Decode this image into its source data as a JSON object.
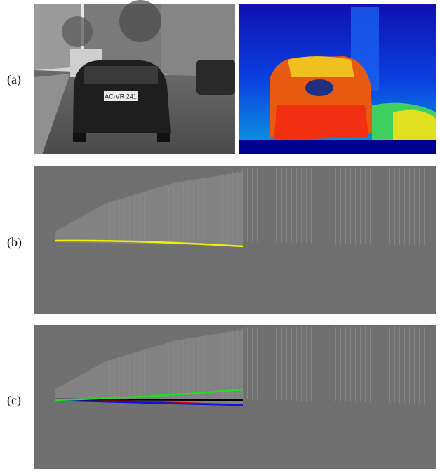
{
  "labels": {
    "a": "(a)",
    "b": "(b)",
    "c": "(c)"
  },
  "photo": {
    "plate": "AC·VR 241"
  }
}
